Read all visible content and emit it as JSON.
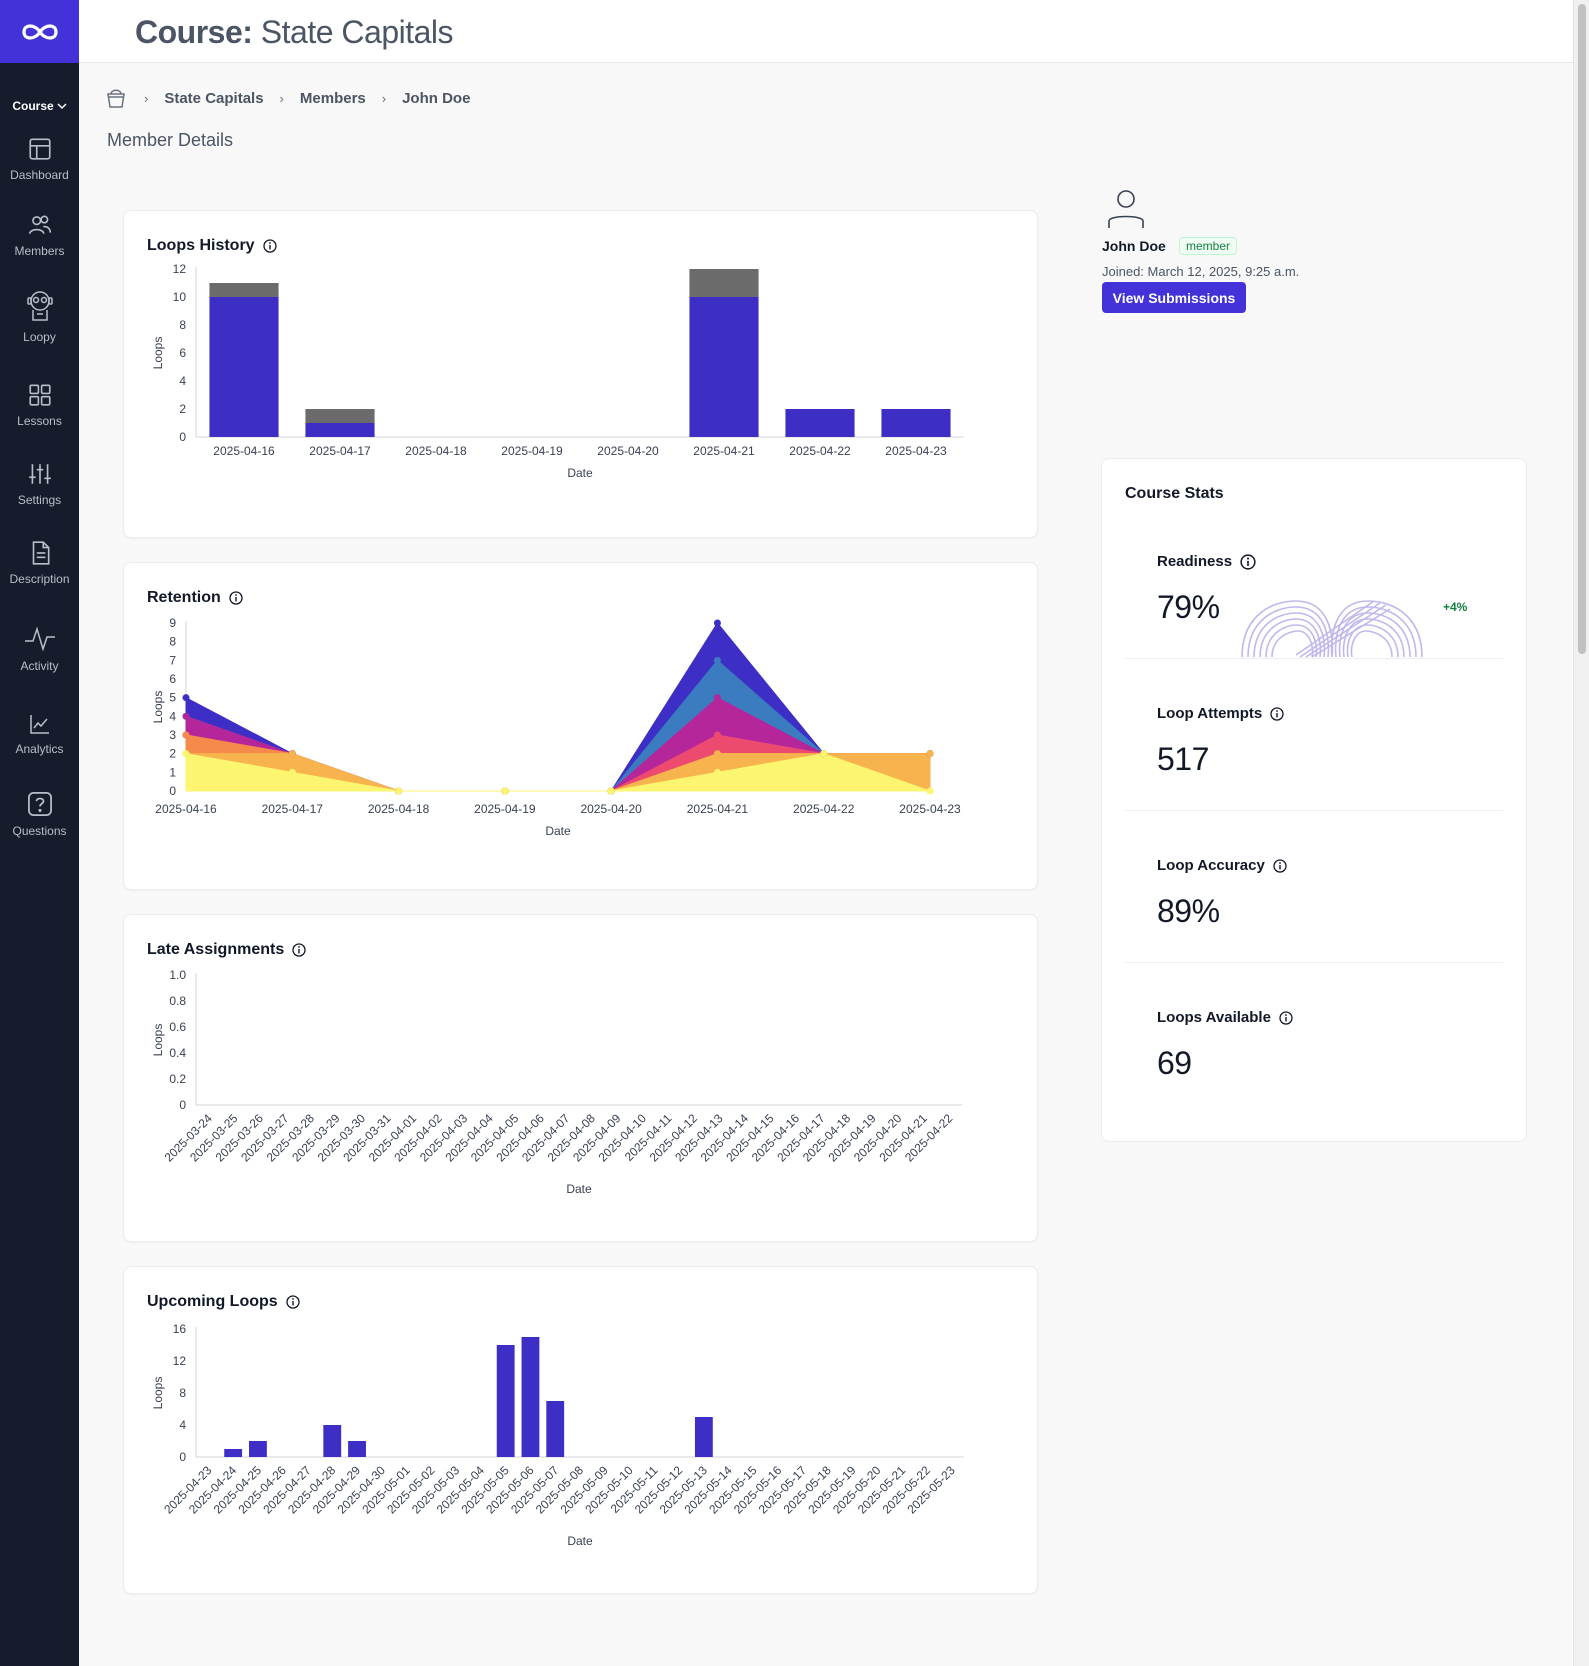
{
  "app": {
    "title_prefix": "Course:",
    "title_name": "State Capitals"
  },
  "sidebar": {
    "course_toggle": "Course",
    "items": [
      {
        "label": "Dashboard",
        "icon": "layout-icon"
      },
      {
        "label": "Members",
        "icon": "users-icon"
      },
      {
        "label": "Loopy",
        "icon": "robot-icon"
      },
      {
        "label": "Lessons",
        "icon": "grid-icon"
      },
      {
        "label": "Settings",
        "icon": "sliders-icon"
      },
      {
        "label": "Description",
        "icon": "document-icon"
      },
      {
        "label": "Activity",
        "icon": "pulse-icon"
      },
      {
        "label": "Analytics",
        "icon": "chart-icon"
      },
      {
        "label": "Questions",
        "icon": "question-icon"
      }
    ]
  },
  "breadcrumb": {
    "items": [
      "State Capitals",
      "Members",
      "John Doe"
    ]
  },
  "section_title": "Member Details",
  "user": {
    "name": "John Doe",
    "role": "member",
    "joined": "Joined: March 12, 2025, 9:25 a.m.",
    "view_submissions": "View Submissions"
  },
  "course_stats": {
    "title": "Course Stats",
    "readiness": {
      "label": "Readiness",
      "value": "79%",
      "delta": "+4%"
    },
    "loop_attempts": {
      "label": "Loop Attempts",
      "value": "517"
    },
    "loop_accuracy": {
      "label": "Loop Accuracy",
      "value": "89%"
    },
    "loops_available": {
      "label": "Loops Available",
      "value": "69"
    }
  },
  "colors": {
    "primary": "#3d2ec6",
    "brand": "#4332d8",
    "gray_bar": "#6b6b6b",
    "sidebar_bg": "#161c2c"
  },
  "chart_data": [
    {
      "id": "loops_history",
      "title": "Loops History",
      "type": "bar",
      "stacked": true,
      "xlabel": "Date",
      "ylabel": "Loops",
      "ylim": [
        0,
        12
      ],
      "yticks": [
        0,
        2,
        4,
        6,
        8,
        10,
        12
      ],
      "categories": [
        "2025-04-16",
        "2025-04-17",
        "2025-04-18",
        "2025-04-19",
        "2025-04-20",
        "2025-04-21",
        "2025-04-22",
        "2025-04-23"
      ],
      "series": [
        {
          "values": [
            10,
            1,
            0,
            0,
            0,
            10,
            2,
            2
          ],
          "color": "#3d2ec6"
        },
        {
          "values": [
            1,
            1,
            0,
            0,
            0,
            2,
            0,
            0
          ],
          "color": "#6b6b6b"
        }
      ]
    },
    {
      "id": "retention",
      "title": "Retention",
      "type": "area",
      "xlabel": "Date",
      "ylabel": "Loops",
      "ylim": [
        0,
        9
      ],
      "yticks": [
        0,
        1,
        2,
        3,
        4,
        5,
        6,
        7,
        8,
        9
      ],
      "categories": [
        "2025-04-16",
        "2025-04-17",
        "2025-04-18",
        "2025-04-19",
        "2025-04-20",
        "2025-04-21",
        "2025-04-22",
        "2025-04-23"
      ],
      "series": [
        {
          "values": [
            5,
            2,
            0,
            0,
            0,
            9,
            2,
            2
          ],
          "color": "#3d2ec6"
        },
        {
          "values": [
            4,
            2,
            0,
            0,
            0,
            7,
            2,
            2
          ],
          "color": "#3b7bc0"
        },
        {
          "values": [
            4,
            2,
            0,
            0,
            0,
            5,
            2,
            2
          ],
          "color": "#b5269b"
        },
        {
          "values": [
            3,
            2,
            0,
            0,
            0,
            3,
            2,
            2
          ],
          "color": "#ec4a6f"
        },
        {
          "values": [
            3,
            2,
            0,
            0,
            0,
            2,
            2,
            2
          ],
          "color": "#f58a4b"
        },
        {
          "values": [
            2,
            2,
            0,
            0,
            0,
            2,
            2,
            2
          ],
          "color": "#f7b34e"
        },
        {
          "values": [
            2,
            1,
            0,
            0,
            0,
            1,
            2,
            0
          ],
          "color": "#fbf56f"
        }
      ]
    },
    {
      "id": "late_assignments",
      "title": "Late Assignments",
      "type": "bar",
      "xlabel": "Date",
      "ylabel": "Loops",
      "ylim": [
        0,
        1
      ],
      "yticks": [
        "0",
        "0.2",
        "0.4",
        "0.6",
        "0.8",
        "1.0"
      ],
      "categories": [
        "2025-03-24",
        "2025-03-25",
        "2025-03-26",
        "2025-03-27",
        "2025-03-28",
        "2025-03-29",
        "2025-03-30",
        "2025-03-31",
        "2025-04-01",
        "2025-04-02",
        "2025-04-03",
        "2025-04-04",
        "2025-04-05",
        "2025-04-06",
        "2025-04-07",
        "2025-04-08",
        "2025-04-09",
        "2025-04-10",
        "2025-04-11",
        "2025-04-12",
        "2025-04-13",
        "2025-04-14",
        "2025-04-15",
        "2025-04-16",
        "2025-04-17",
        "2025-04-18",
        "2025-04-19",
        "2025-04-20",
        "2025-04-21",
        "2025-04-22"
      ],
      "values": [
        0,
        0,
        0,
        0,
        0,
        0,
        0,
        0,
        0,
        0,
        0,
        0,
        0,
        0,
        0,
        0,
        0,
        0,
        0,
        0,
        0,
        0,
        0,
        0,
        0,
        0,
        0,
        0,
        0,
        0
      ]
    },
    {
      "id": "upcoming_loops",
      "title": "Upcoming Loops",
      "type": "bar",
      "xlabel": "Date",
      "ylabel": "Loops",
      "ylim": [
        0,
        16
      ],
      "yticks": [
        0,
        4,
        8,
        12,
        16
      ],
      "categories": [
        "2025-04-23",
        "2025-04-24",
        "2025-04-25",
        "2025-04-26",
        "2025-04-27",
        "2025-04-28",
        "2025-04-29",
        "2025-04-30",
        "2025-05-01",
        "2025-05-02",
        "2025-05-03",
        "2025-05-04",
        "2025-05-05",
        "2025-05-06",
        "2025-05-07",
        "2025-05-08",
        "2025-05-09",
        "2025-05-10",
        "2025-05-11",
        "2025-05-12",
        "2025-05-13",
        "2025-05-14",
        "2025-05-15",
        "2025-05-16",
        "2025-05-17",
        "2025-05-18",
        "2025-05-19",
        "2025-05-20",
        "2025-05-21",
        "2025-05-22",
        "2025-05-23"
      ],
      "values": [
        0,
        1,
        2,
        0,
        0,
        4,
        2,
        0,
        0,
        0,
        0,
        0,
        14,
        15,
        7,
        0,
        0,
        0,
        0,
        0,
        5,
        0,
        0,
        0,
        0,
        0,
        0,
        0,
        0,
        0,
        0
      ],
      "color": "#3d2ec6"
    }
  ]
}
